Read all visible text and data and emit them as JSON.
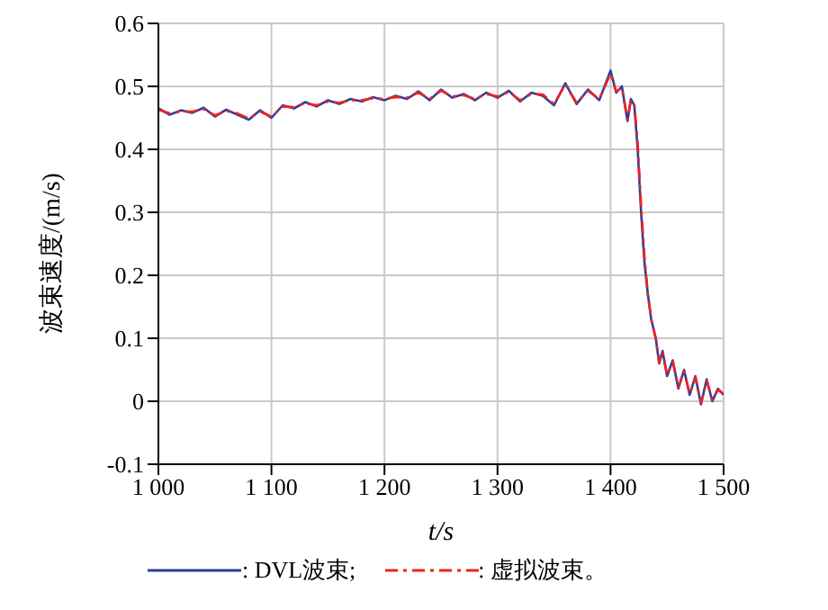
{
  "chart_data": {
    "type": "line",
    "xlabel": "t/s",
    "ylabel": "波束速度/(m/s)",
    "x": [
      1000,
      1010,
      1020,
      1030,
      1040,
      1050,
      1060,
      1070,
      1080,
      1090,
      1100,
      1110,
      1120,
      1130,
      1140,
      1150,
      1160,
      1170,
      1180,
      1190,
      1200,
      1210,
      1220,
      1230,
      1240,
      1250,
      1260,
      1270,
      1280,
      1290,
      1300,
      1310,
      1320,
      1330,
      1340,
      1350,
      1360,
      1370,
      1380,
      1390,
      1400,
      1405,
      1410,
      1415,
      1418,
      1421,
      1424,
      1427,
      1430,
      1433,
      1436,
      1440,
      1443,
      1446,
      1450,
      1455,
      1460,
      1465,
      1470,
      1475,
      1480,
      1485,
      1490,
      1495,
      1500
    ],
    "series": [
      {
        "name": ": DVL波束;",
        "color": "#2b3f9e",
        "line_style": "solid",
        "values": [
          0.465,
          0.455,
          0.462,
          0.458,
          0.466,
          0.452,
          0.463,
          0.455,
          0.447,
          0.462,
          0.45,
          0.47,
          0.465,
          0.475,
          0.468,
          0.478,
          0.472,
          0.48,
          0.476,
          0.483,
          0.478,
          0.485,
          0.48,
          0.492,
          0.478,
          0.495,
          0.482,
          0.488,
          0.478,
          0.49,
          0.482,
          0.493,
          0.476,
          0.49,
          0.485,
          0.47,
          0.505,
          0.472,
          0.495,
          0.478,
          0.525,
          0.49,
          0.5,
          0.445,
          0.48,
          0.47,
          0.4,
          0.3,
          0.22,
          0.17,
          0.13,
          0.1,
          0.06,
          0.08,
          0.04,
          0.065,
          0.02,
          0.05,
          0.01,
          0.04,
          -0.005,
          0.035,
          0,
          0.02,
          0.01
        ]
      },
      {
        "name": ": 虚拟波束。",
        "color": "#ee2222",
        "line_style": "dashed",
        "values": [
          0.463,
          0.457,
          0.46,
          0.46,
          0.464,
          0.454,
          0.461,
          0.457,
          0.449,
          0.46,
          0.452,
          0.468,
          0.467,
          0.473,
          0.47,
          0.476,
          0.474,
          0.478,
          0.478,
          0.481,
          0.48,
          0.483,
          0.482,
          0.49,
          0.48,
          0.493,
          0.484,
          0.486,
          0.48,
          0.488,
          0.484,
          0.491,
          0.478,
          0.488,
          0.487,
          0.472,
          0.503,
          0.474,
          0.493,
          0.48,
          0.52,
          0.492,
          0.498,
          0.447,
          0.478,
          0.472,
          0.41,
          0.31,
          0.23,
          0.17,
          0.13,
          0.1,
          0.062,
          0.078,
          0.042,
          0.063,
          0.022,
          0.048,
          0.012,
          0.038,
          -0.003,
          0.033,
          0.002,
          0.018,
          0.012
        ]
      }
    ],
    "xlim": [
      1000,
      1500
    ],
    "xticks": [
      {
        "value": 1000,
        "label": "1 000"
      },
      {
        "value": 1100,
        "label": "1 100"
      },
      {
        "value": 1200,
        "label": "1 200"
      },
      {
        "value": 1300,
        "label": "1 300"
      },
      {
        "value": 1400,
        "label": "1 400"
      },
      {
        "value": 1500,
        "label": "1 500"
      }
    ],
    "ylim": [
      -0.1,
      0.6
    ],
    "yticks": [
      -0.1,
      0,
      0.1,
      0.2,
      0.3,
      0.4,
      0.5,
      0.6
    ],
    "grid": true,
    "legend": "bottom",
    "marker": "none"
  }
}
